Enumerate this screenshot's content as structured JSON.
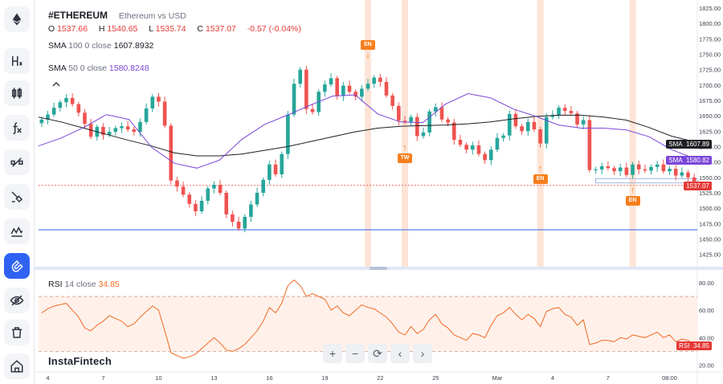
{
  "header": {
    "symbol": "#ETHEREUM",
    "description": "Ethereum vs USD",
    "ohlc": {
      "o_label": "O",
      "o": "1537.66",
      "h_label": "H",
      "h": "1540.65",
      "l_label": "L",
      "l": "1535.74",
      "c_label": "C",
      "c": "1537.07",
      "change": "-0.57 (-0.04%)"
    },
    "sma100": {
      "name": "SMA",
      "params": "100 0 close",
      "value": "1607.8932"
    },
    "sma50": {
      "name": "SMA",
      "params": "50 0 close",
      "value": "1580.8248"
    },
    "rsi": {
      "name": "RSI",
      "params": "14 close",
      "value": "34.85"
    }
  },
  "brand": "InstaFintech",
  "sidebar": {
    "items": [
      {
        "name": "ethereum-logo-icon"
      },
      {
        "name": "hl-icon",
        "glyph": "H"
      },
      {
        "name": "candles-icon"
      },
      {
        "name": "fx-icon",
        "glyph": "fx"
      },
      {
        "name": "node-icon"
      },
      {
        "name": "brush-icon"
      },
      {
        "name": "waves-icon"
      },
      {
        "name": "magnet-icon",
        "active": true
      },
      {
        "name": "eye-off-icon"
      },
      {
        "name": "trash-icon"
      },
      {
        "name": "home-icon"
      }
    ]
  },
  "zoom_controls": [
    "+",
    "−",
    "⟳",
    "‹",
    "›"
  ],
  "price_tags": {
    "sma100": {
      "label": "SMA",
      "value": "1607.89",
      "color": "#1e1f23"
    },
    "sma50": {
      "label": "SMA",
      "value": "1580.82",
      "color": "#7b46d8"
    },
    "current": {
      "value": "1537.07",
      "color": "#e53935"
    },
    "rsi": {
      "label": "RSI",
      "value": "34.85",
      "color": "#e53935"
    }
  },
  "markers": [
    {
      "label": "EN",
      "x_index": 53,
      "side": "above"
    },
    {
      "label": "TW",
      "x_index": 59,
      "side": "below"
    },
    {
      "label": "EN",
      "x_index": 81,
      "side": "below"
    },
    {
      "label": "EN",
      "x_index": 96,
      "side": "below"
    }
  ],
  "colors": {
    "up": "#26a69a",
    "down": "#ef5350",
    "sma100": "#1e1f23",
    "sma50": "#7b46d8",
    "rsi": "#f06a24",
    "rsi_band": "#fff1ea",
    "event_band": "#fde4d6",
    "hline": "#2962ff"
  },
  "chart_data": [
    {
      "type": "candlestick",
      "title": "#ETHEREUM",
      "subtitle": "Ethereum vs USD",
      "y_ticks": [
        1825,
        1800,
        1775,
        1750,
        1725,
        1700,
        1675,
        1650,
        1625,
        1600,
        1575,
        1550,
        1525,
        1500,
        1475,
        1450,
        1425
      ],
      "ylim": [
        1405,
        1838
      ],
      "x_ticks": [
        {
          "label": "4",
          "index": 1
        },
        {
          "label": "7",
          "index": 10
        },
        {
          "label": "10",
          "index": 19
        },
        {
          "label": "13",
          "index": 28
        },
        {
          "label": "16",
          "index": 37
        },
        {
          "label": "19",
          "index": 46
        },
        {
          "label": "22",
          "index": 55
        },
        {
          "label": "25",
          "index": 64
        },
        {
          "label": "Mar",
          "index": 74
        },
        {
          "label": "4",
          "index": 83
        },
        {
          "label": "7",
          "index": 92
        },
        {
          "label": "08:00",
          "index": 102
        }
      ],
      "closes": [
        1644,
        1652,
        1663,
        1672,
        1679,
        1669,
        1655,
        1637,
        1616,
        1632,
        1619,
        1624,
        1630,
        1633,
        1628,
        1624,
        1640,
        1662,
        1681,
        1673,
        1634,
        1545,
        1535,
        1522,
        1507,
        1495,
        1512,
        1532,
        1538,
        1525,
        1490,
        1478,
        1467,
        1486,
        1506,
        1525,
        1546,
        1571,
        1555,
        1588,
        1652,
        1702,
        1725,
        1661,
        1656,
        1689,
        1701,
        1711,
        1682,
        1699,
        1689,
        1681,
        1694,
        1702,
        1712,
        1705,
        1683,
        1666,
        1642,
        1640,
        1648,
        1617,
        1623,
        1657,
        1664,
        1644,
        1639,
        1611,
        1603,
        1595,
        1602,
        1588,
        1578,
        1595,
        1614,
        1618,
        1653,
        1633,
        1625,
        1640,
        1628,
        1605,
        1648,
        1651,
        1663,
        1658,
        1654,
        1636,
        1643,
        1562,
        1563,
        1568,
        1565,
        1560,
        1566,
        1554,
        1571,
        1563,
        1561,
        1567,
        1571,
        1560,
        1564,
        1553,
        1558,
        1550,
        1537
      ],
      "hline": 1465,
      "event_bands": [
        53,
        59,
        81,
        96
      ],
      "series": [
        {
          "name": "SMA 100",
          "values_sampled": [
            1648,
            1640,
            1630,
            1620,
            1610,
            1601,
            1590,
            1585,
            1585,
            1588,
            1594,
            1600,
            1608,
            1616,
            1624,
            1630,
            1633,
            1634,
            1635,
            1637,
            1640,
            1645,
            1649,
            1651,
            1651,
            1648,
            1643,
            1631,
            1617,
            1608
          ]
        },
        {
          "name": "SMA 50",
          "values_sampled": [
            1601,
            1614,
            1631,
            1652,
            1644,
            1599,
            1573,
            1565,
            1578,
            1612,
            1636,
            1651,
            1667,
            1682,
            1684,
            1653,
            1640,
            1639,
            1669,
            1686,
            1679,
            1661,
            1649,
            1635,
            1630,
            1630,
            1627,
            1616,
            1595,
            1581
          ]
        }
      ]
    },
    {
      "type": "line",
      "title": "RSI",
      "y_ticks": [
        80,
        60,
        40,
        20
      ],
      "ylim": [
        15,
        87
      ],
      "bands": [
        30,
        70
      ],
      "series": [
        {
          "name": "RSI 14 close",
          "values": [
            58,
            61,
            63,
            64,
            65,
            60,
            55,
            47,
            45,
            49,
            52,
            56,
            54,
            52,
            48,
            50,
            55,
            59,
            63,
            60,
            45,
            29,
            27,
            25,
            26,
            28,
            32,
            36,
            40,
            36,
            31,
            30,
            32,
            35,
            40,
            45,
            52,
            62,
            58,
            65,
            78,
            82,
            78,
            70,
            72,
            70,
            68,
            60,
            63,
            58,
            56,
            60,
            64,
            62,
            61,
            58,
            55,
            50,
            44,
            42,
            48,
            43,
            46,
            53,
            57,
            50,
            47,
            42,
            40,
            38,
            43,
            42,
            40,
            49,
            56,
            58,
            62,
            57,
            53,
            57,
            54,
            48,
            59,
            61,
            62,
            57,
            55,
            49,
            53,
            35,
            36,
            38,
            38,
            37,
            40,
            39,
            42,
            41,
            40,
            42,
            44,
            40,
            42,
            37,
            39,
            38,
            34.85
          ]
        }
      ]
    }
  ]
}
